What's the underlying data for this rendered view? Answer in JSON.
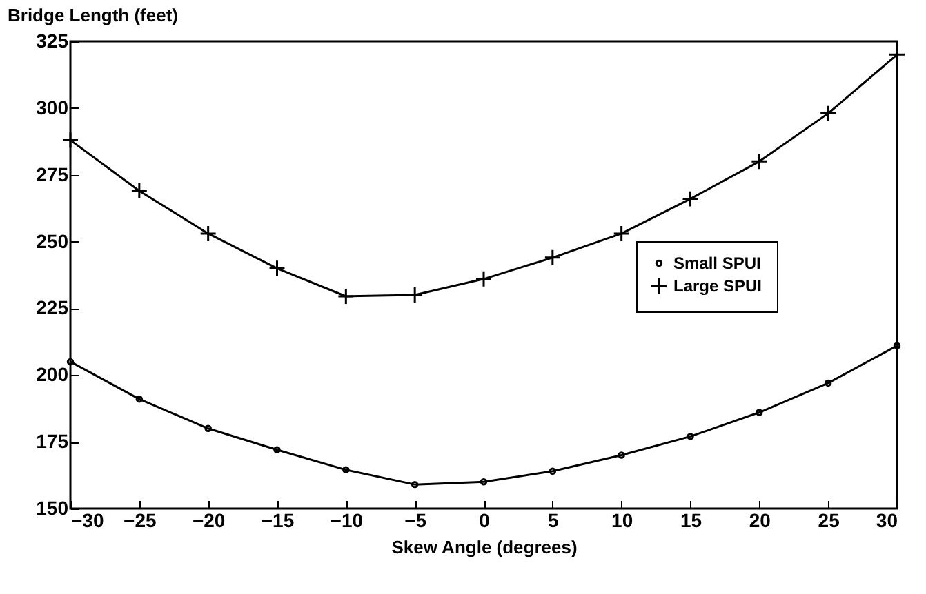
{
  "chart_data": {
    "type": "line",
    "ylabel": "Bridge Length (feet)",
    "xlabel": "Skew Angle (degrees)",
    "x": [
      -30,
      -25,
      -20,
      -15,
      -10,
      -5,
      0,
      5,
      10,
      15,
      20,
      25,
      30
    ],
    "xlim": [
      -30,
      30
    ],
    "xticks": [
      -30,
      -25,
      -20,
      -15,
      -10,
      -5,
      0,
      5,
      10,
      15,
      20,
      25,
      30
    ],
    "ylim": [
      150,
      325
    ],
    "yticks": [
      150,
      175,
      200,
      225,
      250,
      275,
      300,
      325
    ],
    "grid": false,
    "legend": "right",
    "series": [
      {
        "name": "Small SPUI",
        "color": "#000000",
        "marker": "circle",
        "values": [
          205,
          191,
          180,
          172,
          164.5,
          159,
          160,
          164,
          170,
          177,
          186,
          197,
          211
        ]
      },
      {
        "name": "Large SPUI",
        "color": "#000000",
        "marker": "cross",
        "values": [
          288,
          269,
          253,
          240,
          229.5,
          230,
          236,
          244,
          253,
          266,
          280,
          298,
          320
        ]
      }
    ]
  }
}
